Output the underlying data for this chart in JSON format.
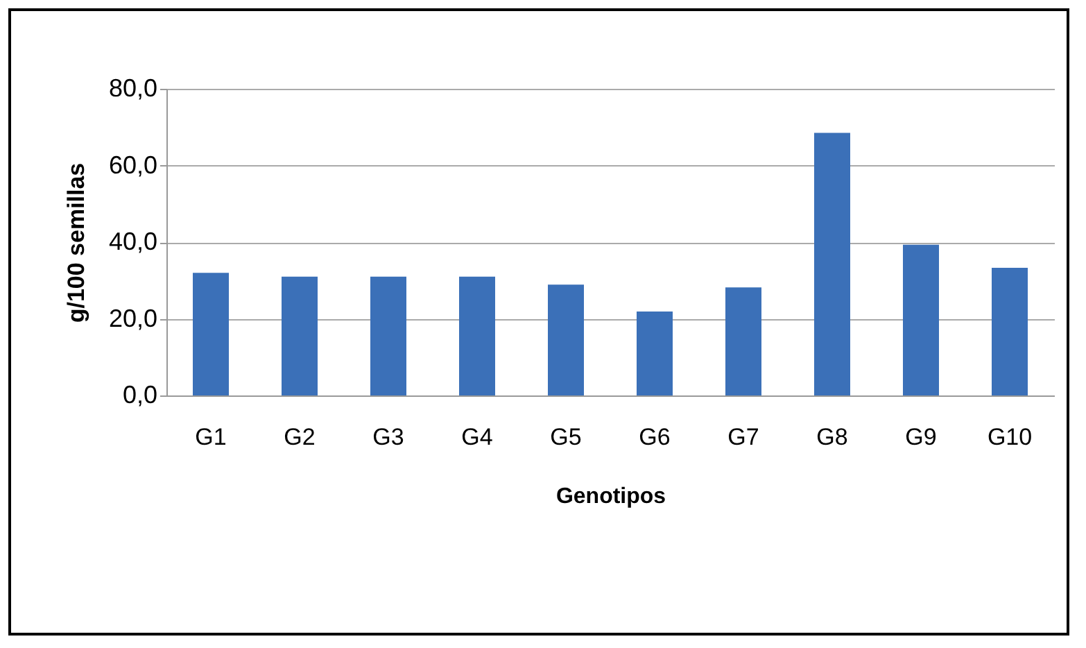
{
  "chart_data": {
    "type": "bar",
    "xlabel": "Genotipos",
    "ylabel": "g/100 semillas",
    "categories": [
      "G1",
      "G2",
      "G3",
      "G4",
      "G5",
      "G6",
      "G7",
      "G8",
      "G9",
      "G10"
    ],
    "values": [
      32.0,
      31.0,
      31.0,
      31.0,
      28.9,
      21.9,
      28.2,
      68.5,
      39.3,
      33.3
    ],
    "color": "#3b70b8",
    "ylim": [
      0,
      80
    ],
    "yticks": [
      {
        "value": 0,
        "label": "0,0"
      },
      {
        "value": 20,
        "label": "20,0"
      },
      {
        "value": 40,
        "label": "40,0"
      },
      {
        "value": 60,
        "label": "60,0"
      },
      {
        "value": 80,
        "label": "80,0"
      }
    ],
    "grid": "y"
  }
}
